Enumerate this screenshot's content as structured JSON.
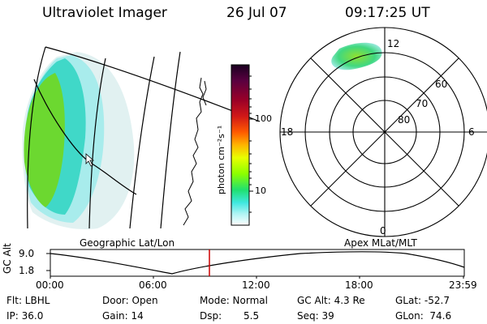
{
  "header": {
    "instrument": "Ultraviolet Imager",
    "date": "26 Jul 07",
    "time": "09:17:25 UT"
  },
  "geo_panel": {
    "label": "Geographic Lat/Lon"
  },
  "polar_panel": {
    "label": "Apex MLat/MLT",
    "mlt_labels": [
      "12",
      "18",
      "6",
      "0"
    ],
    "lat_labels": [
      "60",
      "70",
      "80"
    ]
  },
  "colorbar": {
    "unit_label": "photon cm⁻²s⁻¹",
    "ticks": [
      "100",
      "10"
    ],
    "log_scale": true,
    "colors": [
      "#1a0020",
      "#5a0040",
      "#9a0028",
      "#d01818",
      "#ff5a00",
      "#ffb400",
      "#e8ff00",
      "#8cff00",
      "#20e070",
      "#40e8e0",
      "#b0f4f4",
      "#ffffff"
    ]
  },
  "timeline": {
    "ylabel": "GC Alt",
    "y_ticks": [
      "9.0",
      "1.8"
    ],
    "x_ticks": [
      "00:00",
      "06:00",
      "12:00",
      "18:00",
      "23:59"
    ],
    "current_marker_time": "09:17",
    "marker_color": "#cc0000"
  },
  "info": {
    "flt_label": "Flt: LBHL",
    "ip_label": "IP: 36.0",
    "door_label": "Door: Open",
    "gain_label": "Gain: 14",
    "mode_label": "Mode: Normal",
    "dsp_label": "Dsp:",
    "dsp_value": "5.5",
    "gcalt_label": "GC Alt: 4.3 Re",
    "seq_label": "Seq: 39",
    "glat_label": "GLat: -52.7",
    "glon_label": "GLon:  74.6"
  },
  "colors": {
    "aurora_green": "#7fe030",
    "aurora_cyan": "#40e0d0",
    "aurora_faint": "#b8ecec"
  }
}
